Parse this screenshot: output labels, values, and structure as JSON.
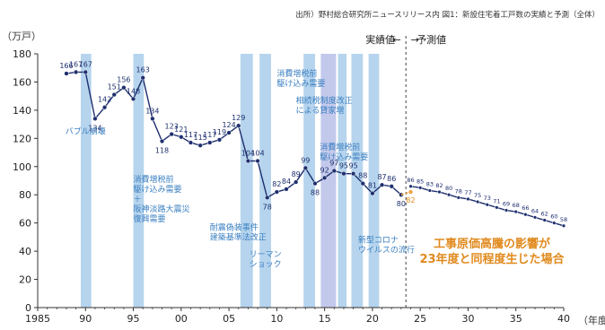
{
  "source_note": "出所）野村総合研究所ニュースリリース内 図1：新設住宅着工戸数の実績と予測（全体）",
  "chart_data": {
    "type": "line",
    "ylabel": "（万戸）",
    "xlabel": "（年度）",
    "ylim": [
      0,
      180
    ],
    "xlim": [
      1985,
      2040
    ],
    "y_ticks": [
      0,
      20,
      40,
      60,
      80,
      100,
      120,
      140,
      160,
      180
    ],
    "x_ticks": [
      {
        "value": 1985,
        "label": "1985"
      },
      {
        "value": 1990,
        "label": "90"
      },
      {
        "value": 1995,
        "label": "95"
      },
      {
        "value": 2000,
        "label": "00"
      },
      {
        "value": 2005,
        "label": "05"
      },
      {
        "value": 2010,
        "label": "10"
      },
      {
        "value": 2015,
        "label": "15"
      },
      {
        "value": 2020,
        "label": "20"
      },
      {
        "value": 2025,
        "label": "25"
      },
      {
        "value": 2030,
        "label": "30"
      },
      {
        "value": 2035,
        "label": "35"
      },
      {
        "value": 2040,
        "label": "40"
      }
    ],
    "divider_year": 2023.5,
    "divider_labels": {
      "actual": "実績値",
      "arrow": "←　→",
      "forecast": "予測値"
    },
    "colors": {
      "actual": "#1e2f6e",
      "forecast": "#1e2f6e",
      "shock": "#f0a040",
      "band": "#a9cdea",
      "band_purple": "#b8c0e8",
      "annotation": "#3a7fc1",
      "shock_text": "#e08a1e",
      "axis": "#333333"
    },
    "series": [
      {
        "role": "actual",
        "points": [
          {
            "x": 1988,
            "y": 166,
            "label": "166"
          },
          {
            "x": 1989,
            "y": 167,
            "label": "167"
          },
          {
            "x": 1990,
            "y": 167,
            "label": "167"
          },
          {
            "x": 1991,
            "y": 134,
            "label": "134"
          },
          {
            "x": 1992,
            "y": 142,
            "label": "142"
          },
          {
            "x": 1993,
            "y": 151,
            "label": "151"
          },
          {
            "x": 1994,
            "y": 156,
            "label": "156"
          },
          {
            "x": 1995,
            "y": 148,
            "label": "148"
          },
          {
            "x": 1996,
            "y": 163,
            "label": "163"
          },
          {
            "x": 1997,
            "y": 134,
            "label": "134"
          },
          {
            "x": 1998,
            "y": 118,
            "label": "118"
          },
          {
            "x": 1999,
            "y": 123,
            "label": "123"
          },
          {
            "x": 2000,
            "y": 121,
            "label": "121"
          },
          {
            "x": 2001,
            "y": 117,
            "label": "117"
          },
          {
            "x": 2002,
            "y": 115,
            "label": "115"
          },
          {
            "x": 2003,
            "y": 117,
            "label": "117"
          },
          {
            "x": 2004,
            "y": 119,
            "label": "119"
          },
          {
            "x": 2005,
            "y": 124,
            "label": "124"
          },
          {
            "x": 2006,
            "y": 129,
            "label": "129"
          },
          {
            "x": 2007,
            "y": 104,
            "label": "104"
          },
          {
            "x": 2008,
            "y": 104,
            "label": "104"
          },
          {
            "x": 2009,
            "y": 78,
            "label": "78"
          },
          {
            "x": 2010,
            "y": 82,
            "label": "82"
          },
          {
            "x": 2011,
            "y": 84,
            "label": "84"
          },
          {
            "x": 2012,
            "y": 89,
            "label": "89"
          },
          {
            "x": 2013,
            "y": 99,
            "label": "99"
          },
          {
            "x": 2014,
            "y": 88,
            "label": "88"
          },
          {
            "x": 2015,
            "y": 92,
            "label": "92"
          },
          {
            "x": 2016,
            "y": 97,
            "label": "97"
          },
          {
            "x": 2017,
            "y": 95,
            "label": "95"
          },
          {
            "x": 2018,
            "y": 95,
            "label": "95"
          },
          {
            "x": 2019,
            "y": 88,
            "label": "88"
          },
          {
            "x": 2020,
            "y": 81,
            "label": "81"
          },
          {
            "x": 2021,
            "y": 87,
            "label": "87"
          },
          {
            "x": 2022,
            "y": 86,
            "label": "86"
          },
          {
            "x": 2023,
            "y": 80,
            "label": "80"
          }
        ]
      },
      {
        "role": "forecast",
        "points": [
          {
            "x": 2024,
            "y": 86,
            "label": "86"
          },
          {
            "x": 2025,
            "y": 85,
            "label": "85"
          },
          {
            "x": 2026,
            "y": 83,
            "label": "83"
          },
          {
            "x": 2027,
            "y": 82,
            "label": "82"
          },
          {
            "x": 2028,
            "y": 80,
            "label": "80"
          },
          {
            "x": 2029,
            "y": 78,
            "label": "78"
          },
          {
            "x": 2030,
            "y": 77,
            "label": "77"
          },
          {
            "x": 2031,
            "y": 75,
            "label": "75"
          },
          {
            "x": 2032,
            "y": 73,
            "label": "73"
          },
          {
            "x": 2033,
            "y": 71,
            "label": "71"
          },
          {
            "x": 2034,
            "y": 69,
            "label": "69"
          },
          {
            "x": 2035,
            "y": 68,
            "label": "68"
          },
          {
            "x": 2036,
            "y": 66,
            "label": "66"
          },
          {
            "x": 2037,
            "y": 64,
            "label": "64"
          },
          {
            "x": 2038,
            "y": 62,
            "label": "62"
          },
          {
            "x": 2039,
            "y": 60,
            "label": "60"
          },
          {
            "x": 2040,
            "y": 58,
            "label": "58"
          }
        ]
      },
      {
        "role": "shock",
        "points": [
          {
            "x": 2023,
            "y": 80,
            "label": ""
          },
          {
            "x": 2024,
            "y": 82,
            "label": "82"
          }
        ]
      }
    ],
    "bands": [
      {
        "from": 1989.5,
        "to": 1990.6,
        "tone": "band"
      },
      {
        "from": 1995.0,
        "to": 1996.1,
        "tone": "band"
      },
      {
        "from": 2006.2,
        "to": 2007.5,
        "tone": "band"
      },
      {
        "from": 2008.2,
        "to": 2009.4,
        "tone": "band"
      },
      {
        "from": 2012.8,
        "to": 2014.0,
        "tone": "band"
      },
      {
        "from": 2014.6,
        "to": 2016.2,
        "tone": "band_purple"
      },
      {
        "from": 2016.4,
        "to": 2017.3,
        "tone": "band"
      },
      {
        "from": 2017.8,
        "to": 2019.0,
        "tone": "band"
      },
      {
        "from": 2019.6,
        "to": 2020.7,
        "tone": "band"
      }
    ],
    "annotations": [
      {
        "lines": [
          "バブル崩壊"
        ],
        "x": 1990.0,
        "y": 123,
        "anchor": "middle"
      },
      {
        "lines": [
          "消費増税前",
          "駆け込み需要",
          "＋",
          "阪神淡路大震災",
          "復興需要"
        ],
        "x": 1995.0,
        "y": 89,
        "anchor": "start"
      },
      {
        "lines": [
          "耐震偽装事件",
          "建築基準法改正"
        ],
        "x": 2003.0,
        "y": 55,
        "anchor": "start"
      },
      {
        "lines": [
          "リーマン",
          "ショック"
        ],
        "x": 2008.8,
        "y": 36,
        "anchor": "middle"
      },
      {
        "lines": [
          "消費増税前",
          "駆け込み需要"
        ],
        "x": 2010.0,
        "y": 164,
        "anchor": "start"
      },
      {
        "lines": [
          "相続税制度改正",
          "による貸家増"
        ],
        "x": 2012.0,
        "y": 145,
        "anchor": "start"
      },
      {
        "lines": [
          "消費増税前",
          "駆け込み需要"
        ],
        "x": 2014.5,
        "y": 112,
        "anchor": "start"
      },
      {
        "lines": [
          "新型コロナ",
          "ウイルスの流行"
        ],
        "x": 2018.5,
        "y": 46,
        "anchor": "start"
      }
    ],
    "shock_note": [
      "工事原価高騰の影響が",
      "23年度と同程度生じた場合"
    ]
  }
}
